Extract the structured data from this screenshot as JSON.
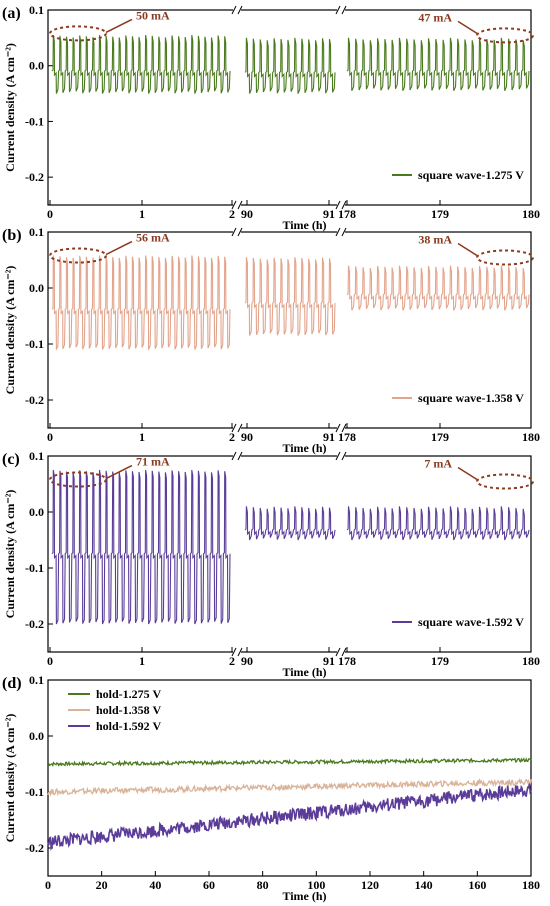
{
  "chart_data": [
    {
      "type": "line",
      "panel_label": "(a)",
      "xlabel": "Time (h)",
      "ylabel": "Current density (A cm⁻²)",
      "y_ticks": [
        "0.1",
        "0.0",
        "-0.1",
        "-0.2"
      ],
      "ylim": [
        -0.25,
        0.1
      ],
      "x_breaks": true,
      "x_segments": [
        {
          "tick_labels": [
            "0",
            "1",
            "2"
          ],
          "range_h": [
            0,
            2
          ]
        },
        {
          "tick_labels": [
            "90",
            "91"
          ],
          "range_h": [
            90,
            91
          ]
        },
        {
          "tick_labels": [
            "178",
            "179",
            "180"
          ],
          "range_h": [
            178,
            180
          ]
        }
      ],
      "series": [
        {
          "name": "square wave-1.275 V",
          "color": "#4a7a1e",
          "segments": [
            {
              "high": 0.055,
              "low": -0.05
            },
            {
              "high": 0.05,
              "low": -0.05
            },
            {
              "high": 0.05,
              "low": -0.045
            }
          ]
        }
      ],
      "annotations": [
        "50 mA",
        "47 mA"
      ],
      "legend_position": "bottom-right"
    },
    {
      "type": "line",
      "panel_label": "(b)",
      "xlabel": "Time (h)",
      "ylabel": "Current density (A cm⁻²)",
      "y_ticks": [
        "0.1",
        "0.0",
        "-0.1",
        "-0.2"
      ],
      "ylim": [
        -0.25,
        0.1
      ],
      "x_breaks": true,
      "x_segments": [
        {
          "tick_labels": [
            "0",
            "1",
            "2"
          ],
          "range_h": [
            0,
            2
          ]
        },
        {
          "tick_labels": [
            "90",
            "91"
          ],
          "range_h": [
            90,
            91
          ]
        },
        {
          "tick_labels": [
            "178",
            "179",
            "180"
          ],
          "range_h": [
            178,
            180
          ]
        }
      ],
      "series": [
        {
          "name": "square wave-1.358 V",
          "color": "#e3a48c",
          "segments": [
            {
              "high": 0.058,
              "low": -0.11
            },
            {
              "high": 0.055,
              "low": -0.085
            },
            {
              "high": 0.04,
              "low": -0.04
            }
          ]
        }
      ],
      "annotations": [
        "56 mA",
        "38 mA"
      ],
      "legend_position": "bottom-right"
    },
    {
      "type": "line",
      "panel_label": "(c)",
      "xlabel": "Time (h)",
      "ylabel": "Current density (A cm⁻²)",
      "y_ticks": [
        "0.1",
        "0.0",
        "-0.1",
        "-0.2"
      ],
      "ylim": [
        -0.25,
        0.1
      ],
      "x_breaks": true,
      "x_segments": [
        {
          "tick_labels": [
            "0",
            "1",
            "2"
          ],
          "range_h": [
            0,
            2
          ]
        },
        {
          "tick_labels": [
            "90",
            "91"
          ],
          "range_h": [
            90,
            91
          ]
        },
        {
          "tick_labels": [
            "178",
            "179",
            "180"
          ],
          "range_h": [
            178,
            180
          ]
        }
      ],
      "series": [
        {
          "name": "square wave-1.592 V",
          "color": "#5b3d99",
          "segments": [
            {
              "high": 0.075,
              "low": -0.2
            },
            {
              "high": 0.01,
              "low": -0.05
            },
            {
              "high": 0.01,
              "low": -0.05
            }
          ]
        }
      ],
      "annotations": [
        "71 mA",
        "7 mA"
      ],
      "legend_position": "bottom-right"
    },
    {
      "type": "line",
      "panel_label": "(d)",
      "xlabel": "Time (h)",
      "ylabel": "Current density (A cm⁻²)",
      "y_ticks": [
        "0.1",
        "0.0",
        "-0.1",
        "-0.2"
      ],
      "ylim": [
        -0.25,
        0.1
      ],
      "x": [
        0,
        180
      ],
      "x_ticks": [
        "0",
        "20",
        "40",
        "60",
        "80",
        "100",
        "120",
        "140",
        "160",
        "180"
      ],
      "series": [
        {
          "name": "hold-1.275 V",
          "color": "#4a7a1e",
          "x": [
            0,
            180
          ],
          "y": [
            -0.05,
            -0.043
          ],
          "noise": 0.003
        },
        {
          "name": "hold-1.358 V",
          "color": "#d9b399",
          "x": [
            0,
            180
          ],
          "y": [
            -0.1,
            -0.082
          ],
          "noise": 0.005
        },
        {
          "name": "hold-1.592 V",
          "color": "#5b3d99",
          "x": [
            0,
            180
          ],
          "y": [
            -0.19,
            -0.095
          ],
          "noise": 0.012
        }
      ],
      "legend_position": "top-left"
    }
  ]
}
